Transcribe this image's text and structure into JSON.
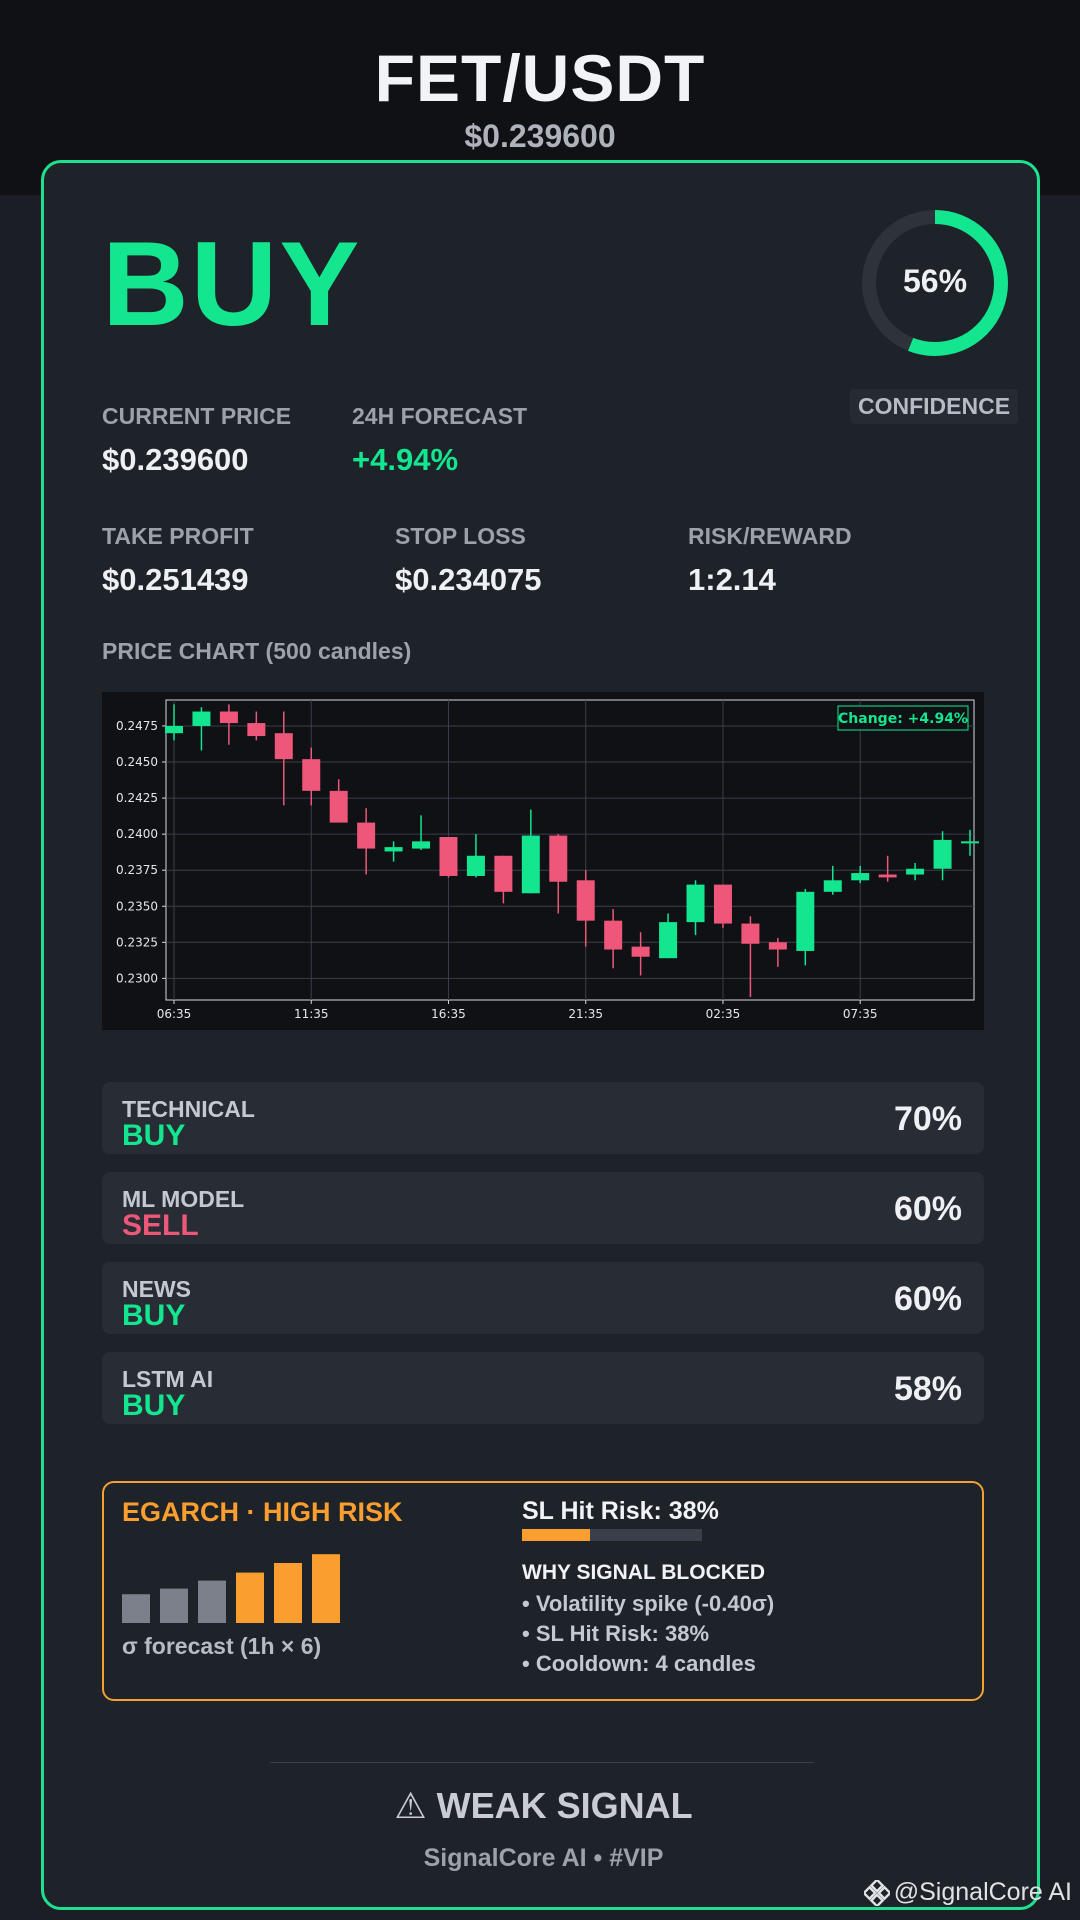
{
  "header": {
    "pair": "FET/USDT",
    "price": "$0.239600"
  },
  "signal": {
    "action": "BUY",
    "confidence_text": "56%",
    "confidence_value": 0.56,
    "confidence_label": "CONFIDENCE"
  },
  "stats": {
    "current_price_label": "CURRENT PRICE",
    "current_price": "$0.239600",
    "forecast_label": "24H FORECAST",
    "forecast": "+4.94%",
    "take_profit_label": "TAKE PROFIT",
    "take_profit": "$0.251439",
    "stop_loss_label": "STOP LOSS",
    "stop_loss": "$0.234075",
    "risk_reward_label": "RISK/REWARD",
    "risk_reward": "1:2.14"
  },
  "chart_title": "PRICE CHART (500 candles)",
  "chart_data": {
    "type": "candlestick",
    "ylim": [
      0.2285,
      0.2493
    ],
    "yticks": [
      "0.2475",
      "0.2450",
      "0.2425",
      "0.2400",
      "0.2375",
      "0.2350",
      "0.2325",
      "0.2300"
    ],
    "ytick_values": [
      0.2475,
      0.245,
      0.2425,
      0.24,
      0.2375,
      0.235,
      0.2325,
      0.23
    ],
    "xticks": [
      "06:35",
      "11:35",
      "16:35",
      "21:35",
      "02:35",
      "07:35"
    ],
    "xtick_index": [
      0,
      5,
      10,
      15,
      20,
      25
    ],
    "annotation": "Change: +4.94%",
    "candles": [
      {
        "o": 0.247,
        "h": 0.249,
        "l": 0.2465,
        "c": 0.2475
      },
      {
        "o": 0.2475,
        "h": 0.2488,
        "l": 0.2458,
        "c": 0.2485
      },
      {
        "o": 0.2485,
        "h": 0.249,
        "l": 0.2462,
        "c": 0.2477
      },
      {
        "o": 0.2477,
        "h": 0.2485,
        "l": 0.2465,
        "c": 0.2468
      },
      {
        "o": 0.247,
        "h": 0.2485,
        "l": 0.242,
        "c": 0.2452
      },
      {
        "o": 0.2452,
        "h": 0.246,
        "l": 0.242,
        "c": 0.243
      },
      {
        "o": 0.243,
        "h": 0.2438,
        "l": 0.2408,
        "c": 0.2408
      },
      {
        "o": 0.2408,
        "h": 0.2418,
        "l": 0.2372,
        "c": 0.239
      },
      {
        "o": 0.2388,
        "h": 0.2395,
        "l": 0.2381,
        "c": 0.2391
      },
      {
        "o": 0.239,
        "h": 0.2413,
        "l": 0.2389,
        "c": 0.2395
      },
      {
        "o": 0.2398,
        "h": 0.2398,
        "l": 0.237,
        "c": 0.2371
      },
      {
        "o": 0.2371,
        "h": 0.24,
        "l": 0.237,
        "c": 0.2385
      },
      {
        "o": 0.2385,
        "h": 0.2385,
        "l": 0.2352,
        "c": 0.236
      },
      {
        "o": 0.2359,
        "h": 0.2417,
        "l": 0.2359,
        "c": 0.2399
      },
      {
        "o": 0.2399,
        "h": 0.24,
        "l": 0.2345,
        "c": 0.2367
      },
      {
        "o": 0.2368,
        "h": 0.2375,
        "l": 0.2322,
        "c": 0.234
      },
      {
        "o": 0.234,
        "h": 0.2348,
        "l": 0.2307,
        "c": 0.232
      },
      {
        "o": 0.2322,
        "h": 0.2332,
        "l": 0.2302,
        "c": 0.2315
      },
      {
        "o": 0.2314,
        "h": 0.2345,
        "l": 0.2314,
        "c": 0.2339
      },
      {
        "o": 0.2339,
        "h": 0.2368,
        "l": 0.233,
        "c": 0.2365
      },
      {
        "o": 0.2365,
        "h": 0.2365,
        "l": 0.2335,
        "c": 0.2338
      },
      {
        "o": 0.2338,
        "h": 0.2343,
        "l": 0.2287,
        "c": 0.2324
      },
      {
        "o": 0.2325,
        "h": 0.2328,
        "l": 0.2308,
        "c": 0.232
      },
      {
        "o": 0.2319,
        "h": 0.2362,
        "l": 0.2309,
        "c": 0.236
      },
      {
        "o": 0.236,
        "h": 0.2378,
        "l": 0.2358,
        "c": 0.2368
      },
      {
        "o": 0.2368,
        "h": 0.2378,
        "l": 0.2366,
        "c": 0.2373
      },
      {
        "o": 0.2372,
        "h": 0.2385,
        "l": 0.2367,
        "c": 0.237
      },
      {
        "o": 0.2372,
        "h": 0.238,
        "l": 0.2368,
        "c": 0.2376
      },
      {
        "o": 0.2376,
        "h": 0.2402,
        "l": 0.2368,
        "c": 0.2396
      },
      {
        "o": 0.2395,
        "h": 0.2403,
        "l": 0.2385,
        "c": 0.2395
      }
    ]
  },
  "sources": [
    {
      "name": "TECHNICAL",
      "signal": "BUY",
      "pct": "70%"
    },
    {
      "name": "ML MODEL",
      "signal": "SELL",
      "pct": "60%"
    },
    {
      "name": "NEWS",
      "signal": "BUY",
      "pct": "60%"
    },
    {
      "name": "LSTM AI",
      "signal": "BUY",
      "pct": "58%"
    }
  ],
  "risk": {
    "title": "EGARCH · HIGH RISK",
    "sigma_label": "σ forecast (1h × 6)",
    "sigma_levels": [
      0.36,
      0.43,
      0.53,
      0.63,
      0.75,
      0.86
    ],
    "sl_title": "SL Hit Risk: 38%",
    "sl_value": 0.38,
    "why_title": "WHY SIGNAL BLOCKED",
    "reasons": [
      "• Volatility spike (-0.40σ)",
      "• SL Hit Risk: 38%",
      "• Cooldown: 4 candles"
    ]
  },
  "verdict": "⚠ WEAK SIGNAL",
  "footer": "SignalCore AI • #VIP",
  "watermark": "@SignalCore AI",
  "colors": {
    "green": "#14e58f",
    "red": "#ee5779",
    "orange": "#f99e2f",
    "grey_bar": "#7b808a"
  }
}
